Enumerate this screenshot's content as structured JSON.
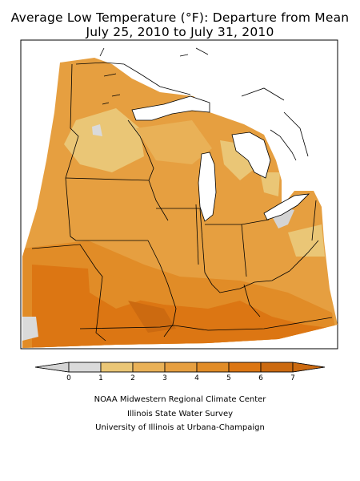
{
  "title": {
    "line1": "Average Low Temperature (°F): Departure from Mean",
    "line2": "July 25, 2010 to July 31, 2010"
  },
  "legend": {
    "ticks": [
      "0",
      "1",
      "2",
      "3",
      "4",
      "5",
      "6",
      "7"
    ],
    "bins": [
      {
        "from": null,
        "to": 0,
        "color": "#d4d4d4"
      },
      {
        "from": 0,
        "to": 1,
        "color": "#dadada"
      },
      {
        "from": 1,
        "to": 2,
        "color": "#eac676"
      },
      {
        "from": 2,
        "to": 3,
        "color": "#e9b157"
      },
      {
        "from": 3,
        "to": 4,
        "color": "#e69f40"
      },
      {
        "from": 4,
        "to": 5,
        "color": "#e18c27"
      },
      {
        "from": 5,
        "to": 6,
        "color": "#dc7613"
      },
      {
        "from": 6,
        "to": null,
        "color": "#cc6a10"
      }
    ]
  },
  "map": {
    "region": "Midwestern United States",
    "water_color": "#ffffff",
    "border_color": "#000000"
  },
  "credits": {
    "line1": "NOAA Midwestern Regional Climate Center",
    "line2": "Illinois State Water Survey",
    "line3": "University of Illinois at Urbana-Champaign"
  }
}
